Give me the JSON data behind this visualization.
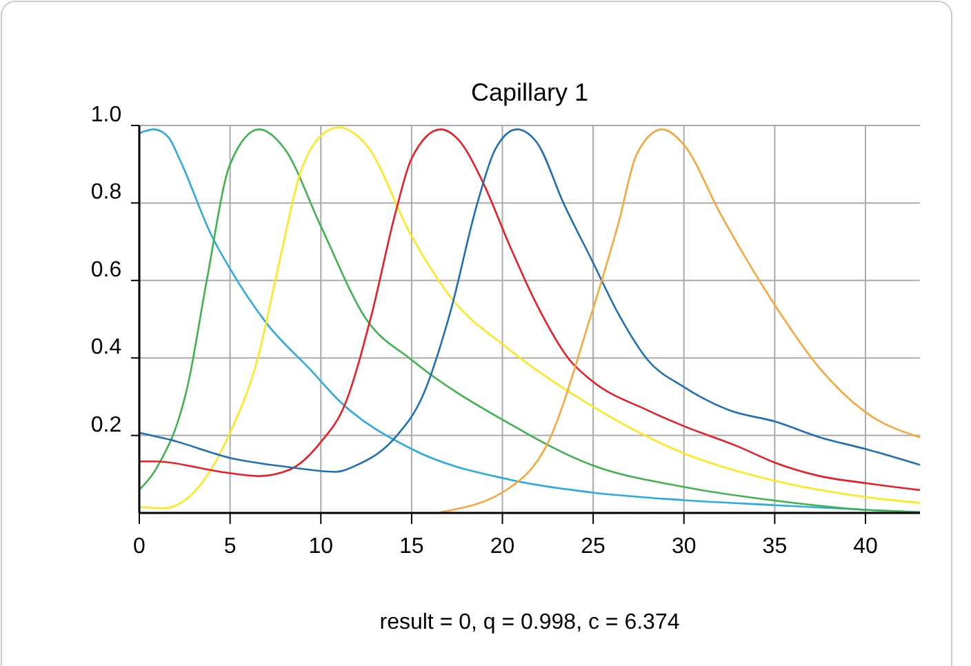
{
  "chart_data": {
    "type": "line",
    "title": "Capillary 1",
    "annotations": [
      "result = 0, q = 0.998, c = 6.374"
    ],
    "xlim": [
      0,
      43
    ],
    "ylim": [
      0,
      1
    ],
    "xticks": [
      0,
      5,
      10,
      15,
      20,
      25,
      30,
      35,
      40
    ],
    "yticks": [
      0.2,
      0.4,
      0.6,
      0.8,
      {
        "value": 1,
        "label": "1.0"
      }
    ],
    "grid": true,
    "marker": "none",
    "line_style": "solid",
    "series": [
      {
        "color": "#29aae1",
        "x": [
          0,
          0.8,
          1.6,
          2.2,
          4,
          5,
          7,
          9.5,
          11,
          15,
          20.4,
          24.9,
          30,
          35,
          40,
          43
        ],
        "values": [
          0.98,
          0.99,
          0.97,
          0.915,
          0.714,
          0.63,
          0.49,
          0.366,
          0.29,
          0.165,
          0.086,
          0.053,
          0.033,
          0.02,
          0.008,
          0.002
        ]
      },
      {
        "color": "#3cb44b",
        "x": [
          0,
          0.9,
          2.7,
          3.7,
          5,
          6.6,
          8,
          10,
          12.5,
          15,
          20.4,
          24.9,
          30,
          35,
          40,
          43
        ],
        "values": [
          0.06,
          0.112,
          0.336,
          0.596,
          0.9,
          0.99,
          0.94,
          0.74,
          0.5,
          0.395,
          0.23,
          0.124,
          0.067,
          0.032,
          0.008,
          0.002
        ]
      },
      {
        "color": "#ffe81a",
        "x": [
          0,
          1.3,
          3,
          5,
          6.5,
          7.75,
          8.8,
          10,
          11,
          12.5,
          15,
          17.1,
          20.4,
          24.9,
          30,
          35,
          40,
          43
        ],
        "values": [
          0.016,
          0.012,
          0.053,
          0.207,
          0.395,
          0.655,
          0.867,
          0.973,
          0.995,
          0.95,
          0.714,
          0.56,
          0.421,
          0.277,
          0.154,
          0.083,
          0.041,
          0.026
        ]
      },
      {
        "color": "#ed1c24",
        "x": [
          0,
          0.9,
          4.5,
          6.6,
          8.3,
          10,
          11.3,
          12.8,
          14.1,
          15,
          16.6,
          17.6,
          18.9,
          20.4,
          21.9,
          23.7,
          24.9,
          28,
          30,
          33,
          35,
          37.5,
          40,
          43
        ],
        "values": [
          0.133,
          0.133,
          0.106,
          0.095,
          0.112,
          0.183,
          0.277,
          0.513,
          0.773,
          0.915,
          0.99,
          0.962,
          0.856,
          0.69,
          0.537,
          0.395,
          0.342,
          0.265,
          0.224,
          0.171,
          0.13,
          0.095,
          0.077,
          0.059
        ]
      },
      {
        "color": "#1f6fb8",
        "x": [
          0,
          1.7,
          5,
          8.3,
          10.8,
          12,
          14.1,
          15.6,
          17.1,
          18.6,
          19.6,
          20.8,
          21.9,
          23.4,
          24.9,
          26.4,
          28,
          30,
          32.5,
          35,
          37.5,
          40,
          43
        ],
        "values": [
          0.207,
          0.189,
          0.142,
          0.118,
          0.106,
          0.124,
          0.195,
          0.301,
          0.513,
          0.796,
          0.938,
          0.99,
          0.956,
          0.796,
          0.655,
          0.513,
          0.395,
          0.325,
          0.265,
          0.236,
          0.195,
          0.165,
          0.124
        ]
      },
      {
        "color": "#f9a63a",
        "x": [
          16.6,
          20.4,
          22.4,
          24.9,
          26.4,
          27.4,
          28.8,
          30,
          32,
          35,
          37.5,
          40,
          43
        ],
        "values": [
          0.002,
          0.065,
          0.171,
          0.513,
          0.749,
          0.926,
          0.99,
          0.95,
          0.773,
          0.537,
          0.372,
          0.26,
          0.195
        ]
      }
    ]
  }
}
